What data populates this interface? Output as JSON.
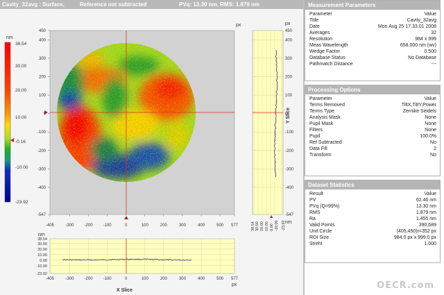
{
  "title_bar": {
    "name": "Cavity_32avg : Surface,",
    "status": "Reference not subtracted",
    "metrics": "PVq: 13.30 nm, RMS: 1.879 nm"
  },
  "colors": {
    "header_gray": "#b9b9b9",
    "panel_gray": "#b5b5b5",
    "slice_bg": "#ffffc0",
    "crosshair": "#e03020",
    "profile": "#1a1a9a"
  },
  "color_bar": {
    "unit": "nm",
    "labels": [
      "38.54",
      "30.00",
      "20.00",
      "10.00",
      "-0.16",
      "-10.00",
      "-23.92"
    ],
    "marker_value": "-0.16"
  },
  "surface_map": {
    "unit": "px",
    "x_ticks": [
      "-405",
      "-300",
      "-200",
      "-100",
      "0",
      "100",
      "200",
      "300",
      "400",
      "500",
      "577"
    ],
    "y_ticks": [
      "450",
      "400",
      "300",
      "200",
      "100",
      "0",
      "-100",
      "-200",
      "-300",
      "-400",
      "-547"
    ]
  },
  "y_slice": {
    "title": "Y Slice",
    "unit": "px",
    "value_unit": "nm",
    "y_ticks": [
      "450",
      "400",
      "300",
      "200",
      "100",
      "0",
      "-100",
      "-200",
      "-300",
      "-400",
      "-547"
    ],
    "value_ticks": [
      "38.54",
      "30.00",
      "20.00",
      "10.00",
      "0.00",
      "-10.00",
      "-23.92"
    ]
  },
  "x_slice": {
    "title": "X Slice",
    "unit": "px",
    "value_unit": "nm",
    "value_ticks": [
      "38.54",
      "30.00",
      "20.00",
      "10.00",
      "0.00",
      "-10.00",
      "-23.92"
    ],
    "x_ticks": [
      "-405",
      "-300",
      "-200",
      "-100",
      "0",
      "100",
      "200",
      "300",
      "400",
      "500",
      "577"
    ]
  },
  "panels": {
    "measurement": {
      "header": "Measurement Parameters",
      "col_param": "Parameter",
      "col_value": "Value",
      "rows": [
        {
          "k": "Title",
          "v": "Cavity_32avg"
        },
        {
          "k": "Date",
          "v": "Mon Aug 25 17.33.01 2008"
        },
        {
          "k": "Averages",
          "v": "32"
        },
        {
          "k": "Resolution",
          "v": "984 x 999"
        },
        {
          "k": "Meas Wavelength",
          "v": "658.000 nm (wv)"
        },
        {
          "k": "Wedge Factor",
          "v": "0.500"
        },
        {
          "k": "Database Status",
          "v": "No Database"
        },
        {
          "k": "Pathmatch Distance",
          "v": "---"
        }
      ]
    },
    "processing": {
      "header": "Processing Options",
      "col_param": "Parameter",
      "col_value": "Value",
      "rows": [
        {
          "k": "Terms Removed",
          "v": "TiltX,TiltY,Power"
        },
        {
          "k": "Terms Type",
          "v": "Zernike Seidels"
        },
        {
          "k": "Analysis Mask",
          "v": "None"
        },
        {
          "k": "Pupil Mask",
          "v": "None"
        },
        {
          "k": "Filters",
          "v": "None"
        },
        {
          "k": "Pupil",
          "v": "100.0%"
        },
        {
          "k": "Ref Subtracted",
          "v": "No"
        },
        {
          "k": "Data Fill",
          "v": "2"
        },
        {
          "k": "Transform",
          "v": "No"
        }
      ]
    },
    "statistics": {
      "header": "Dataset Statistics",
      "col_param": "Result",
      "col_value": "Value",
      "rows": [
        {
          "k": "PV",
          "v": "62.46 nm"
        },
        {
          "k": "PVq (Q=99%)",
          "v": "13.30 nm"
        },
        {
          "k": "RMS",
          "v": "1.879 nm"
        },
        {
          "k": "Ra",
          "v": "1.455 nm"
        },
        {
          "k": "Valid Points",
          "v": "390,689"
        },
        {
          "k": "Unit Circle",
          "v": "(405,450)r=352 px"
        },
        {
          "k": "ROI Size",
          "v": "984.0 px x 999.0 px"
        },
        {
          "k": "Strehl",
          "v": "1.000"
        }
      ]
    }
  },
  "watermark": "OECR.com"
}
